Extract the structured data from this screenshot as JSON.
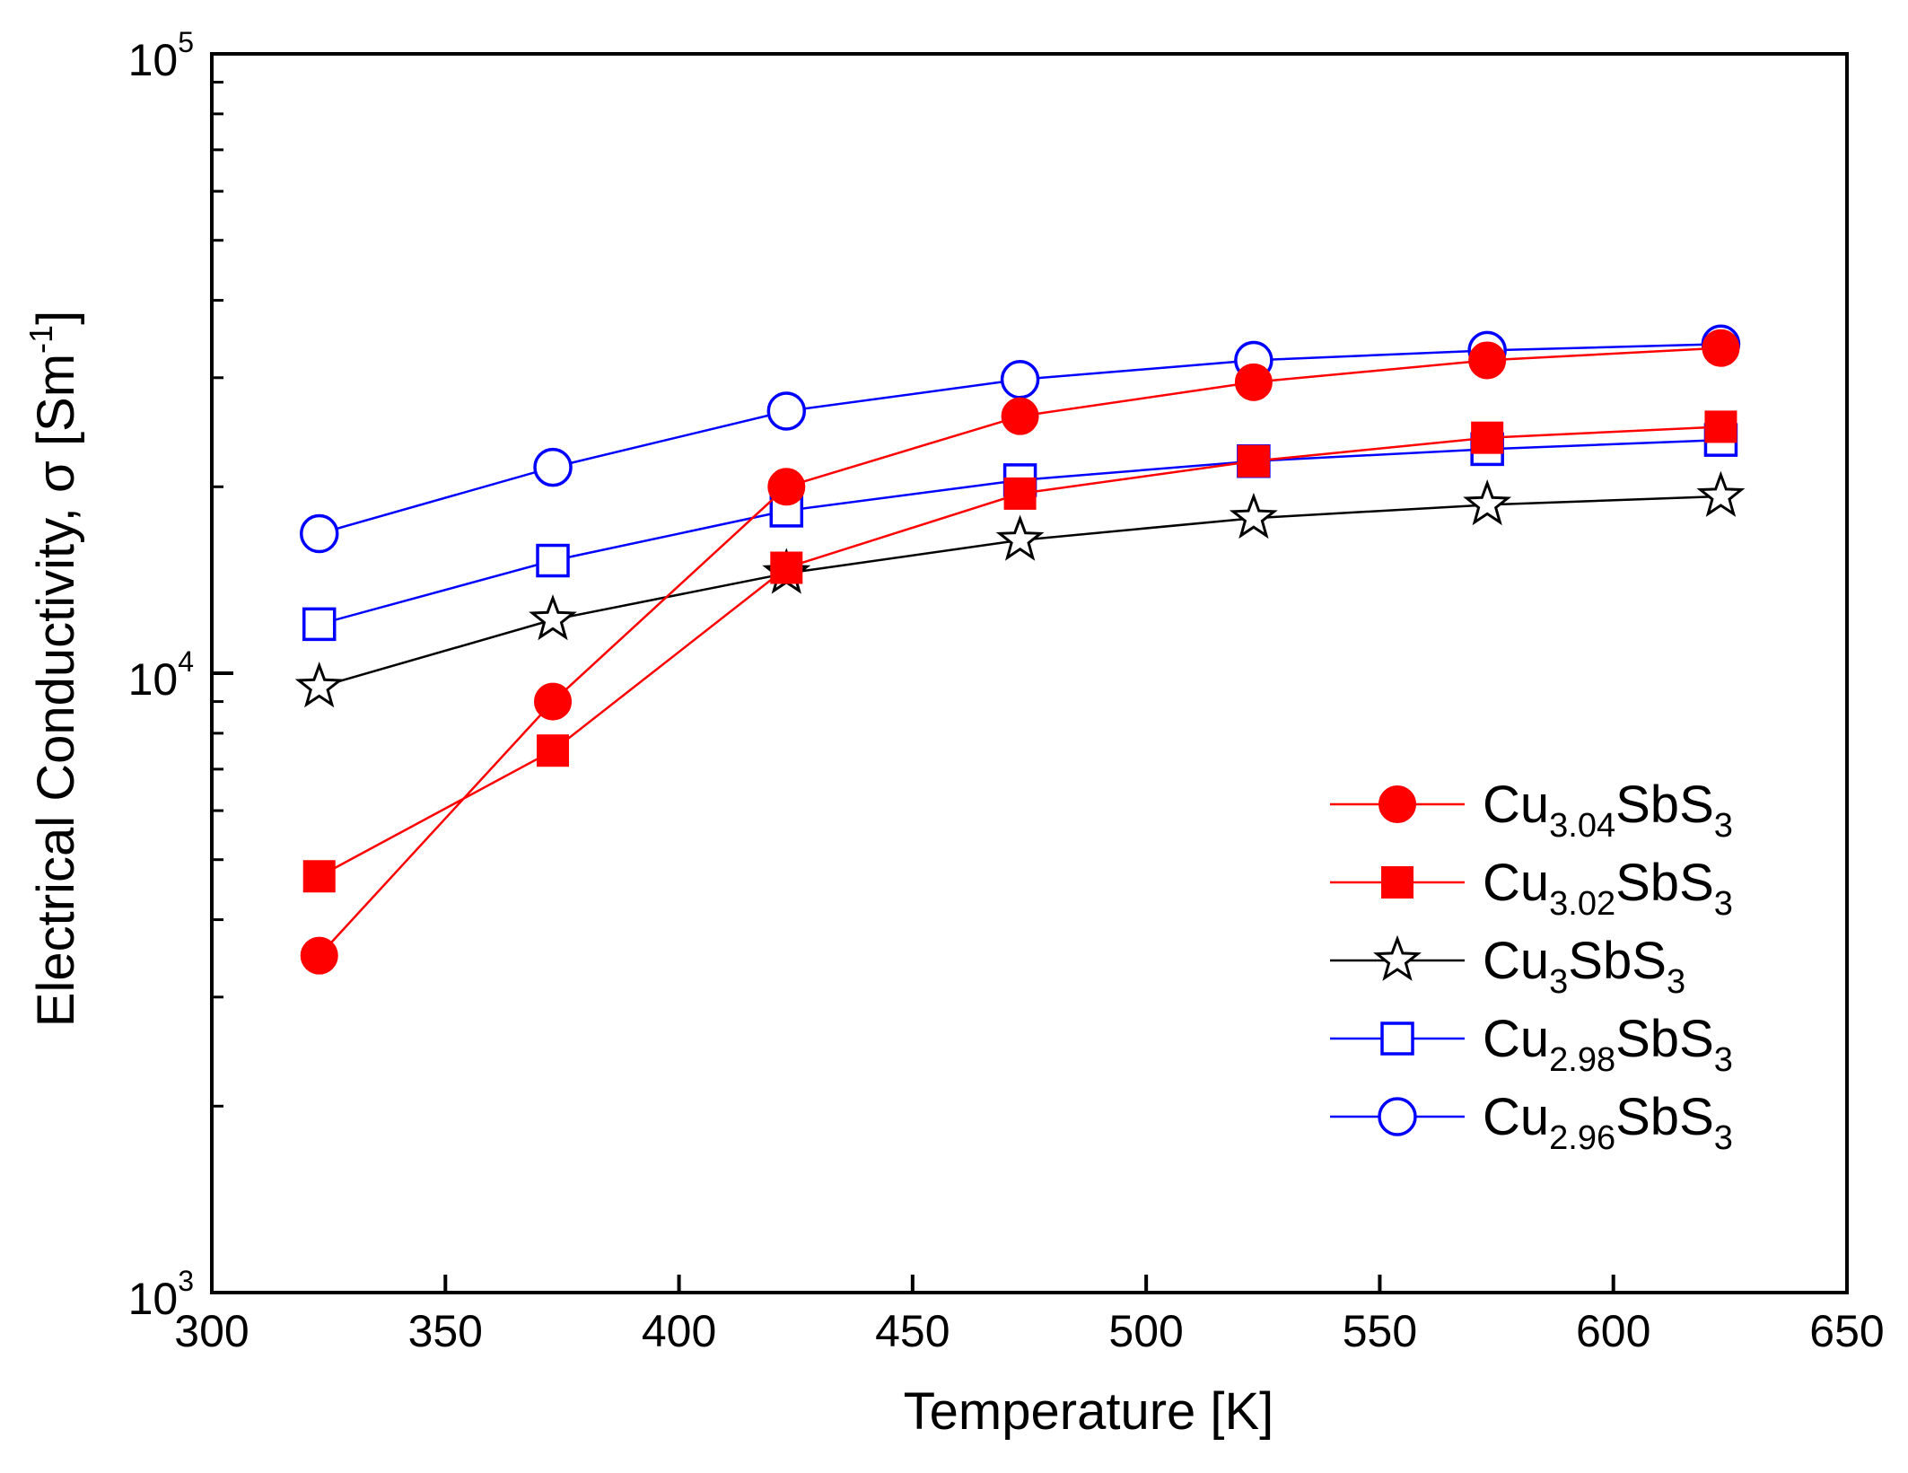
{
  "chart_data": {
    "type": "line",
    "title": "",
    "xlabel": "Temperature [K]",
    "ylabel": {
      "main": "Electrical Conductivity, σ [Sm",
      "sup": "-1",
      "close": "]"
    },
    "xscale": "linear",
    "yscale": "log",
    "xlim": [
      300,
      650
    ],
    "ylim": [
      1000,
      100000
    ],
    "x_ticks": [
      300,
      350,
      400,
      450,
      500,
      550,
      600,
      650
    ],
    "x_tick_labels": [
      "300",
      "350",
      "400",
      "450",
      "500",
      "550",
      "600",
      "650"
    ],
    "y_major_ticks": [
      {
        "value": 1000,
        "base": "10",
        "exp": "3"
      },
      {
        "value": 10000,
        "base": "10",
        "exp": "4"
      },
      {
        "value": 100000,
        "base": "10",
        "exp": "5"
      }
    ],
    "y_minor_ticks": [
      2000,
      3000,
      4000,
      5000,
      6000,
      7000,
      8000,
      9000,
      20000,
      30000,
      40000,
      50000,
      60000,
      70000,
      80000,
      90000
    ],
    "grid": false,
    "legend_position": "bottom-right",
    "x": [
      323,
      373,
      423,
      473,
      523,
      573,
      623
    ],
    "series": [
      {
        "name": "Cu3.04SbS3",
        "label_base": "Cu",
        "label_sub": "3.04",
        "label_mid": "SbS",
        "label_sub2": "3",
        "marker": "filled-circle",
        "color": "#ff0000",
        "values": [
          3500,
          9000,
          20000,
          26000,
          29500,
          32000,
          33500
        ]
      },
      {
        "name": "Cu3.02SbS3",
        "label_base": "Cu",
        "label_sub": "3.02",
        "label_mid": "SbS",
        "label_sub2": "3",
        "marker": "filled-square",
        "color": "#ff0000",
        "values": [
          4700,
          7500,
          14800,
          19500,
          22000,
          24000,
          25000
        ]
      },
      {
        "name": "Cu3SbS3",
        "label_base": "Cu",
        "label_sub": "3",
        "label_mid": "SbS",
        "label_sub2": "3",
        "marker": "open-star",
        "color": "#000000",
        "values": [
          9500,
          12200,
          14500,
          16400,
          17800,
          18700,
          19300
        ]
      },
      {
        "name": "Cu2.98SbS3",
        "label_base": "Cu",
        "label_sub": "2.98",
        "label_mid": "SbS",
        "label_sub2": "3",
        "marker": "open-square",
        "color": "#0000ff",
        "values": [
          12000,
          15200,
          18300,
          20500,
          22000,
          23000,
          23800
        ]
      },
      {
        "name": "Cu2.96SbS3",
        "label_base": "Cu",
        "label_sub": "2.96",
        "label_mid": "SbS",
        "label_sub2": "3",
        "marker": "open-circle",
        "color": "#0000ff",
        "values": [
          16800,
          21500,
          26500,
          29800,
          32000,
          33200,
          34000
        ]
      }
    ]
  }
}
